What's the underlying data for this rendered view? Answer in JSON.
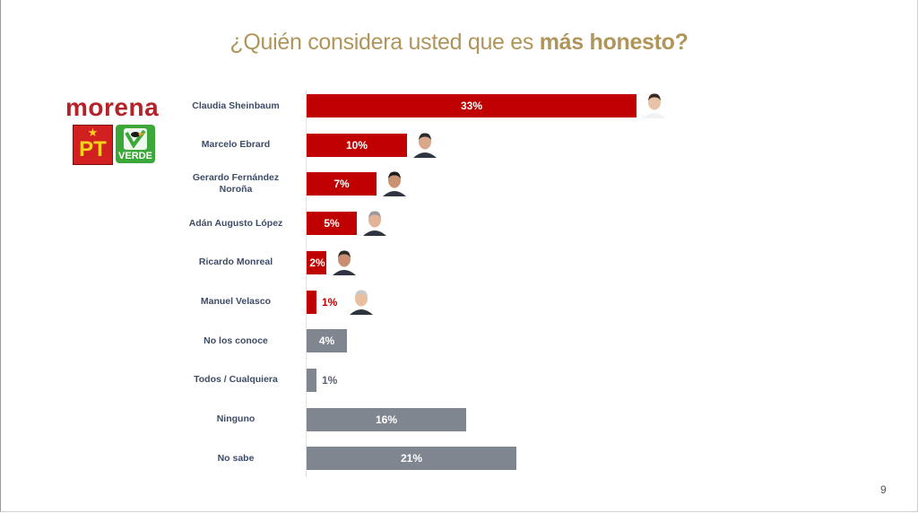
{
  "title": {
    "prefix": "¿Quién considera usted que es ",
    "bold": "más honesto?"
  },
  "logos": {
    "morena": "morena",
    "pt": "PT",
    "verde": "VERDE"
  },
  "page_number": "9",
  "colors": {
    "candidate_bar": "#c00000",
    "other_bar": "#7f868f",
    "title": "#b0955a",
    "label": "#3d4c66"
  },
  "chart_data": {
    "type": "bar",
    "orientation": "horizontal",
    "title": "¿Quién considera usted que es más honesto?",
    "categories": [
      "Claudia Sheinbaum",
      "Marcelo Ebrard",
      "Gerardo Fernández Noroña",
      "Adán Augusto López",
      "Ricardo Monreal",
      "Manuel Velasco",
      "No los conoce",
      "Todos / Cualquiera",
      "Ninguno",
      "No sabe"
    ],
    "values": [
      33,
      10,
      7,
      5,
      2,
      1,
      4,
      1,
      16,
      21
    ],
    "value_labels": [
      "33%",
      "10%",
      "7%",
      "5%",
      "2%",
      "1%",
      "4%",
      "1%",
      "16%",
      "21%"
    ],
    "bar_groups": [
      "candidate",
      "candidate",
      "candidate",
      "candidate",
      "candidate",
      "candidate",
      "other",
      "other",
      "other",
      "other"
    ],
    "has_photo": [
      true,
      true,
      true,
      true,
      true,
      true,
      false,
      false,
      false,
      false
    ],
    "xlim": [
      0,
      33
    ],
    "grid": false,
    "legend": "none"
  }
}
